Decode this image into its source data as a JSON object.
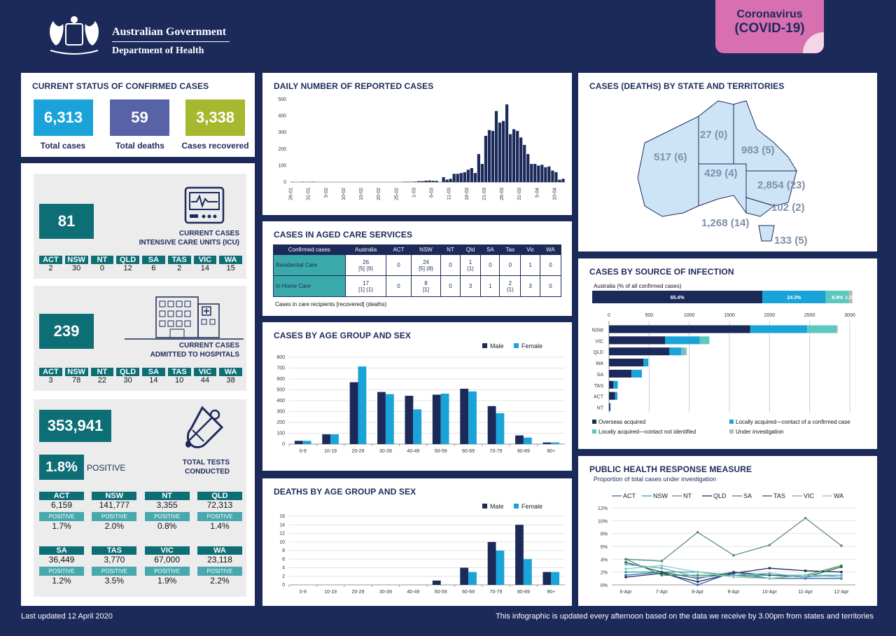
{
  "header": {
    "gov_line1": "Australian Government",
    "gov_line2": "Department of Health",
    "badge_line1": "Coronavirus",
    "badge_line2": "(COVID-19)"
  },
  "status": {
    "title": "CURRENT STATUS OF CONFIRMED CASES",
    "cards": [
      {
        "value": "6,313",
        "label": "Total cases",
        "color": "#1aa3d9"
      },
      {
        "value": "59",
        "label": "Total deaths",
        "color": "#5763a6"
      },
      {
        "value": "3,338",
        "label": "Cases recovered",
        "color": "#a6b82e"
      }
    ]
  },
  "icu": {
    "value": "81",
    "label1": "CURRENT CASES",
    "label2": "INTENSIVE CARE UNITS (ICU)",
    "states": [
      "ACT",
      "NSW",
      "NT",
      "QLD",
      "SA",
      "TAS",
      "VIC",
      "WA"
    ],
    "values": [
      "2",
      "30",
      "0",
      "12",
      "6",
      "2",
      "14",
      "15"
    ]
  },
  "hosp": {
    "value": "239",
    "label1": "CURRENT CASES",
    "label2": "ADMITTED TO HOSPITALS",
    "states": [
      "ACT",
      "NSW",
      "NT",
      "QLD",
      "SA",
      "TAS",
      "VIC",
      "WA"
    ],
    "values": [
      "3",
      "78",
      "22",
      "30",
      "14",
      "10",
      "44",
      "38"
    ]
  },
  "tests": {
    "value": "353,941",
    "positive_pct": "1.8%",
    "positive_word": "POSITIVE",
    "label1": "TOTAL TESTS",
    "label2": "CONDUCTED",
    "row1": [
      {
        "state": "ACT",
        "value": "6,159",
        "pct": "1.7%"
      },
      {
        "state": "NSW",
        "value": "141,777",
        "pct": "2.0%"
      },
      {
        "state": "NT",
        "value": "3,355",
        "pct": "0.8%"
      },
      {
        "state": "QLD",
        "value": "72,313",
        "pct": "1.4%"
      }
    ],
    "row2": [
      {
        "state": "SA",
        "value": "36,449",
        "pct": "1.2%"
      },
      {
        "state": "TAS",
        "value": "3,770",
        "pct": "3.5%"
      },
      {
        "state": "VIC",
        "value": "67,000",
        "pct": "1.9%"
      },
      {
        "state": "WA",
        "value": "23,118",
        "pct": "2.2%"
      }
    ],
    "pos_label": "POSITIVE"
  },
  "daily": {
    "title": "DAILY NUMBER OF REPORTED CASES"
  },
  "aged": {
    "title": "CASES IN AGED CARE SERVICES",
    "headers": [
      "Confirmed cases",
      "Australia",
      "ACT",
      "NSW",
      "NT",
      "Qld",
      "SA",
      "Tas",
      "Vic",
      "WA"
    ],
    "rows": [
      {
        "label": "Residential Care",
        "cells": [
          "26\n[5] (9)",
          "0",
          "24\n[5] (8)",
          "0",
          "1\n(1)",
          "0",
          "0",
          "1",
          "0"
        ]
      },
      {
        "label": "In Home Care",
        "cells": [
          "17\n[1] (1)",
          "0",
          "8\n[1]",
          "0",
          "3",
          "1",
          "2\n(1)",
          "3",
          "0"
        ]
      }
    ],
    "note": "Cases in care recipients [recovered] (deaths)"
  },
  "map": {
    "title": "CASES (DEATHS) BY STATE AND TERRITORIES",
    "labels": {
      "wa": "517 (6)",
      "nt": "27 (0)",
      "qld": "983 (5)",
      "sa": "429 (4)",
      "nsw": "2,854 (23)",
      "act": "102 (2)",
      "vic": "1,268 (14)",
      "tas": "133 (5)"
    }
  },
  "source": {
    "title": "CASES BY SOURCE OF INFECTION",
    "subtitle": "Australia (% of all confirmed cases)",
    "legend": [
      "Overseas acquired",
      "Locally acquired—contact of a confirmed case",
      "Locally acquired—contact not identified",
      "Under investigation"
    ]
  },
  "age": {
    "title": "CASES BY AGE GROUP AND SEX"
  },
  "deaths": {
    "title": "DEATHS BY AGE GROUP AND SEX"
  },
  "phrm": {
    "title": "PUBLIC HEALTH RESPONSE MEASURE",
    "subtitle": "Proportion of total cases under investigation"
  },
  "footer": {
    "left": "Last updated 12 April 2020",
    "right": "This infographic is updated every afternoon based on the data we receive by 3.00pm from states and territories"
  },
  "chart_data": [
    {
      "type": "bar",
      "title": "DAILY NUMBER OF REPORTED CASES",
      "categories": [
        "26-01",
        "27-01",
        "28-01",
        "29-01",
        "30-01",
        "31-01",
        "01-02",
        "02-02",
        "03-02",
        "04-02",
        "05-02",
        "06-02",
        "07-02",
        "08-02",
        "09-02",
        "10-02",
        "11-02",
        "12-02",
        "13-02",
        "14-02",
        "15-02",
        "16-02",
        "17-02",
        "18-02",
        "19-02",
        "20-02",
        "21-02",
        "22-02",
        "23-02",
        "24-02",
        "25-02",
        "26-02",
        "27-02",
        "28-02",
        "29-02",
        "01-03",
        "02-03",
        "03-03",
        "04-03",
        "05-03",
        "06-03",
        "07-03",
        "08-03",
        "09-03",
        "10-03",
        "11-03",
        "12-03",
        "13-03",
        "14-03",
        "15-03",
        "16-03",
        "17-03",
        "18-03",
        "19-03",
        "20-03",
        "21-03",
        "22-03",
        "23-03",
        "24-03",
        "25-03",
        "26-03",
        "27-03",
        "28-03",
        "29-03",
        "30-03",
        "31-03",
        "01-04",
        "02-04",
        "03-04",
        "04-04",
        "05-04",
        "06-04",
        "07-04",
        "08-04",
        "09-04",
        "10-04",
        "11-04",
        "12-04"
      ],
      "tick_labels": [
        "26-01",
        "31-01",
        "5-02",
        "10-02",
        "15-02",
        "20-02",
        "25-02",
        "1-03",
        "6-03",
        "11-03",
        "16-03",
        "21-03",
        "26-03",
        "31-03",
        "5-04",
        "10-04"
      ],
      "values": [
        1,
        0,
        0,
        2,
        0,
        1,
        2,
        0,
        0,
        0,
        0,
        0,
        0,
        0,
        0,
        0,
        0,
        0,
        0,
        0,
        0,
        0,
        0,
        0,
        0,
        0,
        0,
        0,
        0,
        0,
        0,
        0,
        2,
        2,
        2,
        3,
        6,
        6,
        9,
        10,
        8,
        8,
        0,
        30,
        15,
        20,
        50,
        50,
        55,
        60,
        75,
        85,
        55,
        170,
        110,
        280,
        315,
        310,
        430,
        360,
        370,
        470,
        290,
        320,
        310,
        270,
        225,
        170,
        110,
        110,
        100,
        105,
        90,
        95,
        70,
        60,
        15,
        20
      ],
      "ylim": [
        0,
        500
      ],
      "yticks": [
        0,
        100,
        200,
        300,
        400,
        500
      ]
    },
    {
      "type": "bar",
      "title": "CASES BY AGE GROUP AND SEX",
      "categories": [
        "0-9",
        "10-19",
        "20-29",
        "30-39",
        "40-49",
        "50-59",
        "60-69",
        "70-79",
        "80-89",
        "90+"
      ],
      "series": [
        {
          "name": "Male",
          "values": [
            30,
            90,
            570,
            480,
            445,
            455,
            510,
            350,
            80,
            15
          ]
        },
        {
          "name": "Female",
          "values": [
            30,
            90,
            715,
            460,
            320,
            465,
            485,
            285,
            60,
            15
          ]
        }
      ],
      "ylim": [
        0,
        800
      ],
      "yticks": [
        0,
        100,
        200,
        300,
        400,
        500,
        600,
        700,
        800
      ]
    },
    {
      "type": "bar",
      "title": "DEATHS BY AGE GROUP AND SEX",
      "categories": [
        "0-9",
        "10-19",
        "20-29",
        "30-39",
        "40-49",
        "50-59",
        "60-69",
        "70-79",
        "80-89",
        "90+"
      ],
      "series": [
        {
          "name": "Male",
          "values": [
            0,
            0,
            0,
            0,
            0,
            1,
            4,
            10,
            14,
            3
          ]
        },
        {
          "name": "Female",
          "values": [
            0,
            0,
            0,
            0,
            0,
            0,
            3,
            8,
            6,
            3
          ]
        }
      ],
      "ylim": [
        0,
        16
      ],
      "yticks": [
        0,
        2,
        4,
        6,
        8,
        10,
        12,
        14,
        16
      ]
    },
    {
      "type": "bar",
      "title": "CASES BY SOURCE OF INFECTION",
      "categories": [
        "NSW",
        "VIC",
        "QLD",
        "WA",
        "SA",
        "TAS",
        "ACT",
        "NT"
      ],
      "series": [
        {
          "name": "Overseas acquired",
          "values": [
            1760,
            700,
            750,
            430,
            280,
            55,
            75,
            15
          ]
        },
        {
          "name": "Locally acquired—contact of a confirmed case",
          "values": [
            710,
            430,
            150,
            60,
            130,
            55,
            30,
            5
          ]
        },
        {
          "name": "Locally acquired—contact not identified",
          "values": [
            360,
            120,
            50,
            0,
            0,
            0,
            0,
            0
          ]
        },
        {
          "name": "Under investigation",
          "values": [
            20,
            0,
            20,
            0,
            0,
            0,
            0,
            0
          ]
        }
      ],
      "australia_pct": [
        {
          "label": "65.4%",
          "value": 65.4
        },
        {
          "label": "24.3%",
          "value": 24.3
        },
        {
          "label": "8.9%",
          "value": 8.9
        },
        {
          "label": "1.3%",
          "value": 1.3
        }
      ],
      "xlim": [
        0,
        3000
      ],
      "xticks": [
        0,
        500,
        1000,
        1500,
        2000,
        2500,
        3000
      ]
    },
    {
      "type": "line",
      "title": "PUBLIC HEALTH RESPONSE MEASURE",
      "x": [
        "6-Apr",
        "7-Apr",
        "8-Apr",
        "9-Apr",
        "10-Apr",
        "11-Apr",
        "12-Apr"
      ],
      "series": [
        {
          "name": "ACT",
          "color": "#2e6db4",
          "values": [
            1.5,
            2.0,
            0.0,
            2.0,
            1.0,
            1.0,
            1.0
          ]
        },
        {
          "name": "NSW",
          "color": "#2aa7a0",
          "values": [
            2.0,
            2.0,
            2.0,
            1.5,
            1.5,
            1.5,
            1.5
          ]
        },
        {
          "name": "NT",
          "color": "#5b8f7a",
          "values": [
            4.0,
            3.7,
            8.2,
            4.6,
            6.2,
            10.4,
            6.1
          ]
        },
        {
          "name": "QLD",
          "color": "#1c2a5a",
          "values": [
            1.2,
            1.8,
            0.5,
            1.8,
            2.6,
            2.2,
            2.0
          ]
        },
        {
          "name": "SA",
          "color": "#3d8f5a",
          "values": [
            4.0,
            1.5,
            1.5,
            1.5,
            1.0,
            1.5,
            3.0
          ]
        },
        {
          "name": "TAS",
          "color": "#2f5d4a",
          "values": [
            3.5,
            2.0,
            1.0,
            2.0,
            1.5,
            1.2,
            2.8
          ]
        },
        {
          "name": "VIC",
          "color": "#6b9fd4",
          "values": [
            3.2,
            2.6,
            1.2,
            1.5,
            1.8,
            1.2,
            1.5
          ]
        },
        {
          "name": "WA",
          "color": "#88c9c0",
          "values": [
            2.5,
            3.0,
            2.0,
            1.2,
            1.0,
            1.5,
            1.2
          ]
        }
      ],
      "ylim": [
        0,
        12
      ],
      "yticks": [
        "0%",
        "2%",
        "4%",
        "6%",
        "8%",
        "10%",
        "12%"
      ]
    }
  ]
}
